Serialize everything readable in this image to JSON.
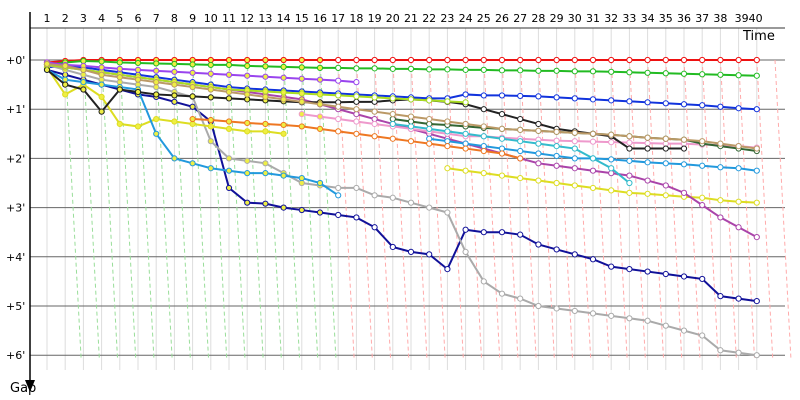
{
  "chart_data": {
    "type": "line",
    "x_axis_title": "Time",
    "y_axis_title": "Gap",
    "x_ticks": [
      "1",
      "2",
      "3",
      "4",
      "5",
      "6",
      "7",
      "8",
      "9",
      "10",
      "11",
      "12",
      "13",
      "14",
      "15",
      "16",
      "17",
      "18",
      "19",
      "20",
      "21",
      "22",
      "23",
      "24",
      "25",
      "26",
      "27",
      "28",
      "29",
      "30",
      "31",
      "32",
      "33",
      "34",
      "35",
      "36",
      "37",
      "38",
      "3940"
    ],
    "y_ticks": [
      "+0'",
      "+1'",
      "+2'",
      "+3'",
      "+4'",
      "+5'",
      "+6'"
    ],
    "xlim": [
      0,
      41
    ],
    "ylim_minutes": [
      0,
      6.4
    ],
    "grid": true,
    "colors": {
      "red": "#ee1111",
      "green": "#22bb22",
      "blue": "#1133dd",
      "navy": "#111199",
      "gray": "#aaaaaa",
      "yellow": "#dddd22",
      "purple": "#aa44aa",
      "skyblue": "#2299dd",
      "pink": "#ee99cc",
      "darkgreen": "#336633",
      "black": "#222222",
      "olive": "#999922",
      "orange": "#ee7722",
      "cyan": "#33bbcc",
      "lime": "#aadd22",
      "violet": "#9944ee",
      "tan": "#bb9966"
    },
    "series": [
      {
        "color": "#ee1111",
        "x": [
          1,
          2,
          3,
          4,
          5,
          6,
          7,
          8,
          9,
          10,
          11,
          12,
          13,
          14,
          15,
          16,
          17,
          18,
          19,
          20,
          21,
          22,
          23,
          24,
          25,
          26,
          27,
          28,
          29,
          30,
          31,
          32,
          33,
          34,
          35,
          36,
          37,
          38,
          39,
          40
        ],
        "y": [
          0.05,
          0.02,
          0,
          0,
          0,
          0,
          0,
          0,
          0,
          0,
          0,
          0,
          0,
          0,
          0,
          0,
          0,
          0,
          0,
          0,
          0,
          0,
          0,
          0,
          0,
          0,
          0,
          0,
          0,
          0,
          0,
          0,
          0,
          0,
          0,
          0,
          0,
          0,
          0,
          0
        ]
      },
      {
        "color": "#22bb22",
        "x": [
          1,
          2,
          3,
          4,
          5,
          6,
          7,
          8,
          9,
          10,
          11,
          12,
          13,
          14,
          15,
          16,
          17,
          18,
          19,
          20,
          21,
          22,
          23,
          24,
          25,
          26,
          27,
          28,
          29,
          30,
          31,
          32,
          33,
          34,
          35,
          36,
          37,
          38,
          39,
          40
        ],
        "y": [
          0.1,
          0.05,
          0.02,
          0.03,
          0.05,
          0.06,
          0.07,
          0.08,
          0.09,
          0.1,
          0.1,
          0.12,
          0.13,
          0.14,
          0.15,
          0.16,
          0.16,
          0.17,
          0.17,
          0.18,
          0.18,
          0.19,
          0.19,
          0.2,
          0.2,
          0.21,
          0.21,
          0.22,
          0.22,
          0.23,
          0.23,
          0.24,
          0.25,
          0.26,
          0.27,
          0.28,
          0.29,
          0.3,
          0.31,
          0.32
        ]
      },
      {
        "color": "#1133dd",
        "x": [
          1,
          2,
          3,
          4,
          5,
          6,
          7,
          8,
          9,
          10,
          11,
          12,
          13,
          14,
          15,
          16,
          17,
          18,
          19,
          20,
          21,
          22,
          23,
          24,
          25,
          26,
          27,
          28,
          29,
          30,
          31,
          32,
          33,
          34,
          35,
          36,
          37,
          38,
          39,
          40
        ],
        "y": [
          0.15,
          0.12,
          0.15,
          0.2,
          0.25,
          0.3,
          0.35,
          0.4,
          0.45,
          0.5,
          0.55,
          0.58,
          0.6,
          0.62,
          0.64,
          0.66,
          0.68,
          0.7,
          0.72,
          0.74,
          0.76,
          0.78,
          0.78,
          0.7,
          0.72,
          0.72,
          0.73,
          0.74,
          0.76,
          0.78,
          0.8,
          0.82,
          0.84,
          0.86,
          0.88,
          0.9,
          0.92,
          0.95,
          0.98,
          1.0
        ]
      },
      {
        "color": "#111199",
        "x": [
          1,
          2,
          3,
          4,
          5,
          6,
          7,
          8,
          9,
          10,
          11,
          12,
          13,
          14,
          15,
          16,
          17,
          18,
          19,
          20,
          21,
          22,
          23,
          24,
          25,
          26,
          27,
          28,
          29,
          30,
          31,
          32,
          33,
          34,
          35,
          36,
          37,
          38,
          39,
          40
        ],
        "y": [
          0.2,
          0.3,
          0.4,
          0.5,
          0.6,
          0.7,
          0.75,
          0.85,
          0.95,
          1.25,
          2.6,
          2.9,
          2.92,
          3.0,
          3.05,
          3.1,
          3.15,
          3.2,
          3.4,
          3.8,
          3.9,
          3.95,
          4.25,
          3.45,
          3.5,
          3.5,
          3.55,
          3.75,
          3.85,
          3.95,
          4.05,
          4.2,
          4.25,
          4.3,
          4.35,
          4.4,
          4.45,
          4.8,
          4.85,
          4.9
        ]
      },
      {
        "color": "#aaaaaa",
        "x": [
          1,
          2,
          3,
          4,
          5,
          6,
          7,
          8,
          9,
          10,
          11,
          12,
          13,
          14,
          15,
          16,
          17,
          18,
          19,
          20,
          21,
          22,
          23,
          24,
          25,
          26,
          27,
          28,
          29,
          30,
          31,
          32,
          33,
          34,
          35,
          36,
          37,
          38,
          39,
          40
        ],
        "y": [
          0.1,
          0.2,
          0.3,
          0.4,
          0.45,
          0.5,
          0.55,
          0.65,
          0.75,
          1.65,
          2.0,
          2.05,
          2.1,
          2.3,
          2.5,
          2.55,
          2.6,
          2.6,
          2.75,
          2.8,
          2.9,
          3.0,
          3.1,
          3.9,
          4.5,
          4.75,
          4.85,
          5.0,
          5.05,
          5.1,
          5.15,
          5.2,
          5.25,
          5.3,
          5.4,
          5.5,
          5.6,
          5.9,
          5.95,
          6.0
        ]
      },
      {
        "color": "#dddd22",
        "x": [
          1,
          2,
          3,
          4,
          5,
          6,
          7,
          8,
          9,
          10,
          11,
          12,
          13,
          14
        ],
        "y": [
          0.15,
          0.7,
          0.5,
          0.75,
          1.3,
          1.35,
          1.2,
          1.25,
          1.3,
          1.35,
          1.4,
          1.45,
          1.45,
          1.5
        ]
      },
      {
        "color": "#dddd22",
        "x": [
          23,
          24,
          25,
          26,
          27,
          28,
          29,
          30,
          31,
          32,
          33,
          34,
          35,
          36,
          37,
          38,
          39,
          40
        ],
        "y": [
          2.2,
          2.25,
          2.3,
          2.35,
          2.4,
          2.45,
          2.5,
          2.55,
          2.6,
          2.65,
          2.7,
          2.72,
          2.75,
          2.78,
          2.8,
          2.85,
          2.88,
          2.9
        ]
      },
      {
        "color": "#aa44aa",
        "x": [
          1,
          2,
          3,
          4,
          5,
          6,
          7,
          8,
          9,
          10,
          11,
          12,
          13,
          14,
          15,
          16,
          17,
          18,
          19,
          20,
          21,
          22,
          23,
          24,
          25,
          26,
          27,
          28,
          29,
          30,
          31,
          32,
          33,
          34,
          35,
          36,
          37,
          38,
          39,
          40
        ],
        "y": [
          0.1,
          0.15,
          0.2,
          0.25,
          0.3,
          0.35,
          0.4,
          0.45,
          0.5,
          0.55,
          0.6,
          0.65,
          0.7,
          0.75,
          0.8,
          0.9,
          1.0,
          1.1,
          1.2,
          1.3,
          1.4,
          1.5,
          1.6,
          1.7,
          1.8,
          1.9,
          2.0,
          2.1,
          2.15,
          2.2,
          2.25,
          2.3,
          2.35,
          2.45,
          2.55,
          2.7,
          2.95,
          3.2,
          3.4,
          3.6
        ]
      },
      {
        "color": "#2299dd",
        "x": [
          1,
          2,
          3,
          4,
          5,
          6,
          7,
          8,
          9,
          10,
          11,
          12,
          13,
          14,
          15,
          16,
          17
        ],
        "y": [
          0.2,
          0.4,
          0.45,
          0.5,
          0.55,
          0.6,
          1.5,
          2.0,
          2.1,
          2.2,
          2.25,
          2.3,
          2.3,
          2.35,
          2.4,
          2.5,
          2.75
        ]
      },
      {
        "color": "#2299dd",
        "x": [
          22,
          23,
          24,
          25,
          26,
          27,
          28,
          29,
          30,
          31,
          32,
          33,
          34,
          35,
          36,
          37,
          38,
          39,
          40
        ],
        "y": [
          1.6,
          1.65,
          1.7,
          1.75,
          1.8,
          1.85,
          1.9,
          1.95,
          2.0,
          2.0,
          2.02,
          2.05,
          2.08,
          2.1,
          2.12,
          2.15,
          2.18,
          2.2,
          2.25
        ]
      },
      {
        "color": "#ee99cc",
        "x": [
          15,
          16,
          17,
          18,
          19,
          20,
          21,
          22,
          23,
          24,
          25,
          26,
          27,
          28,
          29,
          30,
          31,
          32,
          33,
          34,
          35,
          36,
          37,
          38,
          39,
          40
        ],
        "y": [
          1.1,
          1.15,
          1.2,
          1.25,
          1.3,
          1.35,
          1.4,
          1.45,
          1.5,
          1.55,
          1.55,
          1.58,
          1.6,
          1.62,
          1.64,
          1.65,
          1.66,
          1.67,
          1.68,
          1.69,
          1.7,
          1.7,
          1.72,
          1.73,
          1.75,
          1.78
        ]
      },
      {
        "color": "#336633",
        "x": [
          20,
          21,
          22,
          23,
          24,
          25,
          26,
          27,
          28,
          29,
          30,
          31,
          32,
          33,
          34,
          35,
          36,
          37,
          38,
          39,
          40
        ],
        "y": [
          1.2,
          1.25,
          1.3,
          1.32,
          1.35,
          1.38,
          1.4,
          1.42,
          1.44,
          1.46,
          1.48,
          1.5,
          1.52,
          1.55,
          1.58,
          1.6,
          1.62,
          1.7,
          1.75,
          1.8,
          1.85
        ]
      },
      {
        "color": "#222222",
        "x": [
          1,
          2,
          3,
          4,
          5,
          6,
          7,
          8,
          9,
          10,
          11,
          12,
          13,
          14,
          15,
          16,
          17,
          18,
          19,
          20,
          21,
          22,
          23,
          24,
          25,
          26,
          27,
          28,
          29,
          30,
          31,
          32,
          33,
          34,
          35,
          36
        ],
        "y": [
          0.2,
          0.5,
          0.6,
          1.05,
          0.6,
          0.65,
          0.7,
          0.72,
          0.74,
          0.76,
          0.78,
          0.8,
          0.82,
          0.84,
          0.86,
          0.86,
          0.86,
          0.85,
          0.85,
          0.82,
          0.8,
          0.82,
          0.85,
          0.9,
          1.0,
          1.1,
          1.2,
          1.3,
          1.4,
          1.45,
          1.5,
          1.55,
          1.8,
          1.8,
          1.8,
          1.8
        ]
      },
      {
        "color": "#ee7722",
        "x": [
          9,
          10,
          11,
          12,
          13,
          14,
          15,
          16,
          17,
          18,
          19,
          20,
          21,
          22,
          23,
          24,
          25,
          26,
          27
        ],
        "y": [
          1.2,
          1.22,
          1.25,
          1.28,
          1.3,
          1.32,
          1.35,
          1.4,
          1.45,
          1.5,
          1.55,
          1.6,
          1.65,
          1.7,
          1.75,
          1.8,
          1.85,
          1.9,
          2.0
        ]
      },
      {
        "color": "#33bbcc",
        "x": [
          20,
          21,
          22,
          23,
          24,
          25,
          26,
          27,
          28,
          29,
          30,
          31,
          32,
          33
        ],
        "y": [
          1.3,
          1.35,
          1.4,
          1.45,
          1.5,
          1.55,
          1.6,
          1.65,
          1.7,
          1.75,
          1.8,
          2.0,
          2.2,
          2.5
        ]
      },
      {
        "color": "#aadd22",
        "x": [
          1,
          2,
          3,
          4,
          5,
          6,
          7,
          8,
          9,
          10,
          11,
          12,
          13,
          14,
          15,
          16,
          17,
          18,
          19,
          20,
          21,
          22,
          23,
          24
        ],
        "y": [
          0.1,
          0.15,
          0.2,
          0.25,
          0.3,
          0.35,
          0.4,
          0.45,
          0.5,
          0.55,
          0.6,
          0.62,
          0.64,
          0.66,
          0.68,
          0.7,
          0.72,
          0.74,
          0.76,
          0.78,
          0.8,
          0.82,
          0.84,
          0.86
        ]
      },
      {
        "color": "#9944ee",
        "x": [
          1,
          2,
          3,
          4,
          5,
          6,
          7,
          8,
          9,
          10,
          11,
          12,
          13,
          14,
          15,
          16,
          17,
          18
        ],
        "y": [
          0.05,
          0.1,
          0.12,
          0.15,
          0.18,
          0.2,
          0.22,
          0.24,
          0.26,
          0.28,
          0.3,
          0.32,
          0.34,
          0.36,
          0.38,
          0.4,
          0.42,
          0.45
        ]
      },
      {
        "color": "#bb9966",
        "x": [
          1,
          2,
          3,
          4,
          5,
          6,
          7,
          8,
          9,
          10,
          11,
          12,
          13,
          14,
          15,
          16,
          17,
          18,
          19,
          20,
          21,
          22,
          23,
          24,
          25,
          26,
          27,
          28,
          29,
          30,
          31,
          32,
          33,
          34,
          35,
          36,
          37,
          38,
          39,
          40
        ],
        "y": [
          0.08,
          0.12,
          0.2,
          0.3,
          0.35,
          0.4,
          0.45,
          0.5,
          0.55,
          0.6,
          0.65,
          0.7,
          0.75,
          0.8,
          0.85,
          0.9,
          0.95,
          1.0,
          1.05,
          1.1,
          1.15,
          1.2,
          1.25,
          1.3,
          1.35,
          1.4,
          1.42,
          1.44,
          1.46,
          1.48,
          1.5,
          1.52,
          1.55,
          1.58,
          1.6,
          1.62,
          1.65,
          1.7,
          1.75,
          1.8
        ]
      }
    ]
  }
}
